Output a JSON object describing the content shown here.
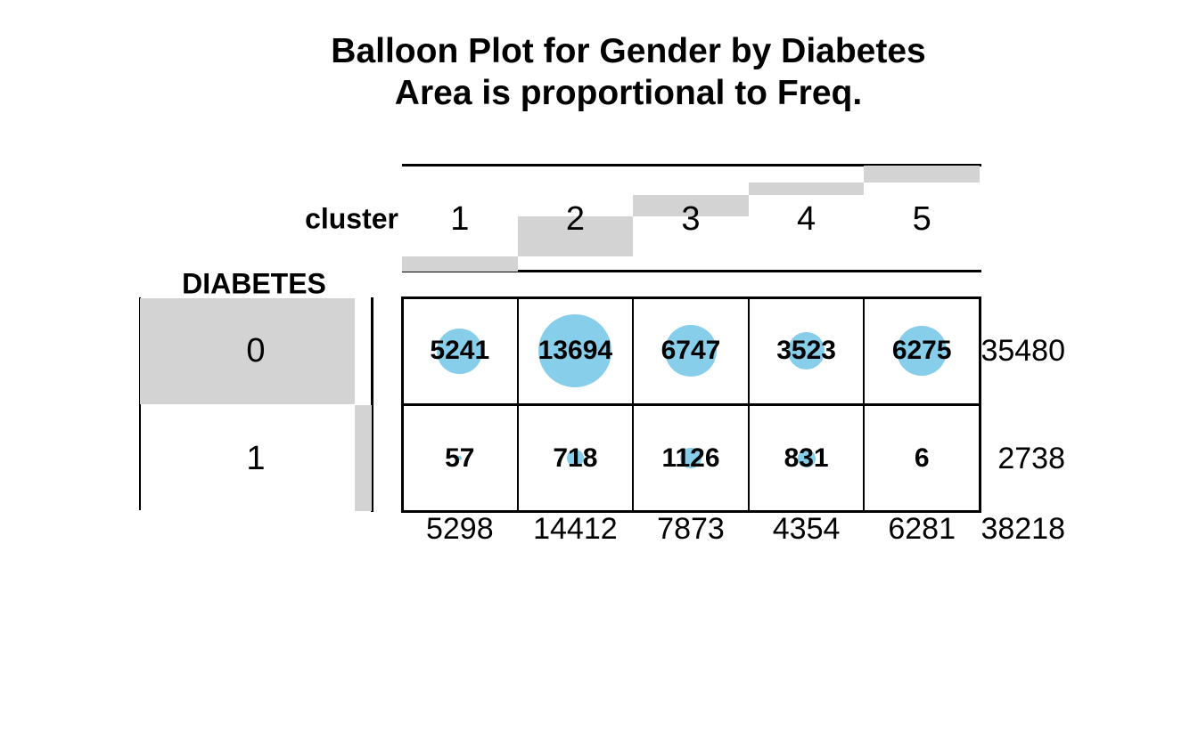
{
  "chart_data": {
    "type": "table",
    "subtype": "balloon-plot",
    "title_line1": "Balloon Plot for Gender by Diabetes",
    "title_line2": "Area is proportional to Freq.",
    "column_variable": "cluster",
    "row_variable": "DIABETES",
    "columns": [
      "1",
      "2",
      "3",
      "4",
      "5"
    ],
    "rows": [
      "0",
      "1"
    ],
    "values": [
      [
        5241,
        13694,
        6747,
        3523,
        6275
      ],
      [
        57,
        718,
        1126,
        831,
        6
      ]
    ],
    "row_totals": [
      35480,
      2738
    ],
    "column_totals": [
      5298,
      14412,
      7873,
      4354,
      6281
    ],
    "grand_total": 38218,
    "layout_hints": {
      "balloon_area_proportional_to": "Freq",
      "margin_bars": "stacked cumulative share of grand total",
      "legend": "none",
      "grid": "cell borders on"
    },
    "colors": {
      "balloon": "#87CEEB",
      "margin_bar": "#D3D3D3",
      "text": "#000000",
      "background": "#FFFFFF"
    }
  }
}
